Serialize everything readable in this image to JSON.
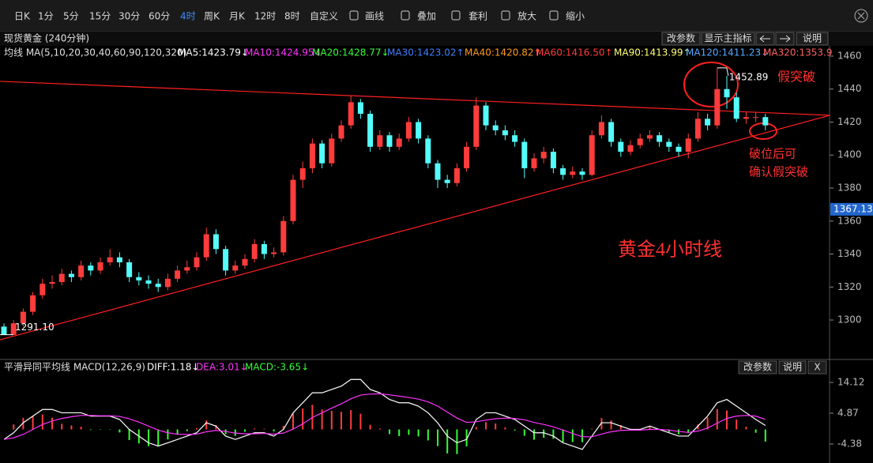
{
  "toolbar": {
    "items": [
      "日K",
      "1分",
      "5分",
      "15分",
      "30分",
      "60分",
      "4时",
      "周K",
      "月K",
      "12时",
      "8时",
      "自定义",
      "画线",
      "叠加",
      "套利",
      "放大",
      "缩小"
    ],
    "selected_index": 6
  },
  "chart_data": [
    {
      "type": "candlestick",
      "title": "现货黄金 (240分钟)",
      "buttons": [
        "改参数",
        "显示主指标",
        "说明"
      ],
      "indicator_title": "均线 MA(5,10,20,30,40,60,90,120,320)",
      "indicators": [
        {
          "label": "MA5:1423.79↓",
          "color": "#ffffff"
        },
        {
          "label": "MA10:1424.95↓",
          "color": "#ff33ff"
        },
        {
          "label": "MA20:1428.77↓",
          "color": "#33ff33"
        },
        {
          "label": "MA30:1423.02↑",
          "color": "#3f7fff"
        },
        {
          "label": "MA40:1420.82↑",
          "color": "#ff9a1e"
        },
        {
          "label": "MA60:1416.50↑",
          "color": "#ff3c3c"
        },
        {
          "label": "MA90:1413.99↑",
          "color": "#ffff77"
        },
        {
          "label": "MA120:1411.23↓",
          "color": "#55aaff"
        },
        {
          "label": "MA320:1353.9",
          "color": "#ff6060"
        }
      ],
      "open": [
        1296,
        1291,
        1298,
        1305,
        1315,
        1322,
        1323,
        1328,
        1326,
        1333,
        1330,
        1335,
        1338,
        1335,
        1326,
        1324,
        1322,
        1320,
        1325,
        1330,
        1332,
        1338,
        1352,
        1343,
        1330,
        1333,
        1337,
        1346,
        1340,
        1341,
        1360,
        1385,
        1392,
        1407,
        1395,
        1410,
        1418,
        1432,
        1425,
        1405,
        1412,
        1405,
        1410,
        1420,
        1410,
        1395,
        1385,
        1383,
        1392,
        1405,
        1430,
        1418,
        1415,
        1412,
        1408,
        1392,
        1398,
        1402,
        1392,
        1388,
        1390,
        1388,
        1412,
        1420,
        1408,
        1402,
        1406,
        1410,
        1412,
        1408,
        1405,
        1402,
        1410,
        1422,
        1418,
        1440,
        1435,
        1422,
        1423,
        1423
      ],
      "high": [
        1298,
        1300,
        1307,
        1317,
        1325,
        1327,
        1331,
        1330,
        1336,
        1335,
        1338,
        1343,
        1341,
        1337,
        1329,
        1327,
        1325,
        1328,
        1333,
        1336,
        1341,
        1356,
        1355,
        1345,
        1336,
        1340,
        1349,
        1348,
        1344,
        1363,
        1388,
        1396,
        1410,
        1409,
        1413,
        1421,
        1436,
        1434,
        1427,
        1415,
        1414,
        1413,
        1423,
        1422,
        1412,
        1397,
        1388,
        1395,
        1408,
        1435,
        1432,
        1421,
        1418,
        1415,
        1410,
        1401,
        1405,
        1404,
        1394,
        1393,
        1392,
        1415,
        1424,
        1422,
        1410,
        1409,
        1413,
        1415,
        1414,
        1410,
        1407,
        1413,
        1426,
        1425,
        1452.89,
        1448,
        1438,
        1426,
        1426,
        1425
      ],
      "low": [
        1291.1,
        1292,
        1296,
        1303,
        1313,
        1319,
        1321,
        1323,
        1324,
        1327,
        1328,
        1333,
        1332,
        1323,
        1321,
        1319,
        1317,
        1318,
        1323,
        1328,
        1330,
        1336,
        1340,
        1327,
        1328,
        1331,
        1335,
        1337,
        1338,
        1339,
        1358,
        1380,
        1389,
        1392,
        1393,
        1408,
        1416,
        1422,
        1402,
        1403,
        1402,
        1403,
        1408,
        1407,
        1392,
        1380,
        1380,
        1381,
        1390,
        1403,
        1415,
        1412,
        1409,
        1405,
        1386,
        1390,
        1395,
        1389,
        1385,
        1386,
        1385,
        1387,
        1410,
        1405,
        1399,
        1400,
        1404,
        1408,
        1405,
        1402,
        1399,
        1398,
        1408,
        1415,
        1416,
        1428,
        1420,
        1419,
        1420,
        1415
      ],
      "close": [
        1291,
        1298,
        1305,
        1315,
        1322,
        1323,
        1328,
        1326,
        1333,
        1330,
        1335,
        1338,
        1335,
        1326,
        1324,
        1322,
        1320,
        1325,
        1330,
        1332,
        1338,
        1352,
        1343,
        1330,
        1333,
        1337,
        1346,
        1340,
        1341,
        1360,
        1385,
        1392,
        1407,
        1395,
        1410,
        1418,
        1432,
        1425,
        1405,
        1412,
        1405,
        1410,
        1420,
        1410,
        1395,
        1385,
        1383,
        1392,
        1405,
        1430,
        1418,
        1415,
        1412,
        1408,
        1392,
        1398,
        1402,
        1392,
        1388,
        1390,
        1388,
        1412,
        1420,
        1408,
        1402,
        1406,
        1410,
        1412,
        1408,
        1405,
        1402,
        1410,
        1422,
        1418,
        1440,
        1435,
        1422,
        1423,
        1423,
        1418
      ],
      "up_color": "#ff3c3c",
      "down_color": "#54fcfc",
      "ylim": [
        1277.5,
        1464.3
      ],
      "yticks": [
        1300,
        1320,
        1340,
        1360,
        1380,
        1400,
        1420,
        1440,
        1460
      ],
      "price_tag": 1367.13,
      "high_label": "1452.89",
      "low_label": "1291.10",
      "trendlines": [
        {
          "x": [
            -0.4,
            85.7
          ],
          "y": [
            1444.7,
            1424.1
          ],
          "color": "#ff2020"
        },
        {
          "x": [
            -0.4,
            85.7
          ],
          "y": [
            1288,
            1424.1
          ],
          "color": "#ff2020"
        }
      ],
      "annotations": [
        "假突破",
        "破位后可",
        "确认假突破",
        "黄金4小时线"
      ]
    },
    {
      "type": "macd",
      "title": "平滑异同平均线 MACD(12,26,9)",
      "indicators": [
        {
          "label": "DIFF:1.18↓",
          "color": "#ffffff"
        },
        {
          "label": "DEA:3.01↓",
          "color": "#ff33ff"
        },
        {
          "label": "MACD:-3.65↓",
          "color": "#33ff33"
        }
      ],
      "buttons": [
        "改参数",
        "说明",
        "X"
      ],
      "series": [
        {
          "color": "#ffffff",
          "values": [
            -3,
            -1,
            2,
            4,
            6,
            6,
            5,
            5,
            5,
            4,
            4,
            4,
            3,
            0,
            -2,
            -4,
            -5,
            -4,
            -3,
            -2,
            -1,
            2,
            1,
            -2,
            -3,
            -2,
            -1,
            -1,
            -2,
            0,
            5,
            8,
            11,
            11,
            12,
            13,
            15,
            15,
            12,
            11,
            9,
            8,
            8,
            7,
            5,
            2,
            -2,
            -4,
            -3,
            3,
            5,
            5,
            4,
            3,
            1,
            -1,
            -1,
            -2,
            -4,
            -5,
            -6,
            -2,
            2,
            2,
            1,
            0,
            0,
            1,
            0,
            -1,
            -2,
            -2,
            1,
            4,
            8,
            9,
            7,
            5,
            3,
            1.18
          ]
        },
        {
          "color": "#ff33ff",
          "values": [
            -3,
            -2.5,
            -1.5,
            0,
            1.5,
            2.5,
            3.3,
            3.8,
            4.2,
            4.2,
            4.1,
            4.1,
            3.9,
            3.2,
            2.2,
            1,
            -0.2,
            -1,
            -1.4,
            -1.5,
            -1.4,
            -0.7,
            -0.3,
            -0.6,
            -1.1,
            -1.3,
            -1.3,
            -1.2,
            -1.4,
            -1.1,
            0.1,
            1.7,
            3.6,
            5,
            6.4,
            7.7,
            9.2,
            10.3,
            10.6,
            10.7,
            10.4,
            10,
            9.6,
            9.1,
            8.3,
            7,
            5.2,
            3.4,
            2.1,
            2.3,
            2.8,
            3.2,
            3.4,
            3.3,
            2.9,
            2.1,
            1.5,
            0.8,
            -0.2,
            -1.2,
            -2.2,
            -2.2,
            -1.4,
            -0.7,
            -0.3,
            -0.2,
            -0.2,
            0,
            0,
            -0.2,
            -0.6,
            -0.9,
            -0.5,
            0.4,
            1.9,
            3.3,
            4,
            4.2,
            4,
            3.01
          ]
        }
      ],
      "histogram": [
        0,
        1.5,
        3.5,
        4,
        4.5,
        3.5,
        1.7,
        1.2,
        0.8,
        -0.2,
        -0.1,
        -0.1,
        -0.9,
        -3.2,
        -4.2,
        -5,
        -4.8,
        -3,
        -1.6,
        -0.5,
        0.4,
        2.7,
        1.3,
        -1.4,
        -1.9,
        -0.7,
        0.3,
        0.2,
        -0.6,
        1.1,
        4.9,
        6.3,
        7.4,
        6,
        5.6,
        5.3,
        5.8,
        4.7,
        1.4,
        0.3,
        -1.4,
        -2,
        -1.6,
        -2.1,
        -3.3,
        -5,
        -7.2,
        -7.4,
        -5.1,
        0.7,
        2.2,
        1.8,
        0.6,
        -0.3,
        -1.9,
        -3.1,
        -2.5,
        -2.8,
        -3.8,
        -3.8,
        -3.8,
        0.2,
        3.4,
        2.7,
        1.3,
        0.2,
        0.2,
        1,
        0,
        -0.8,
        -1.4,
        -1.1,
        1.5,
        3.6,
        6.1,
        5.7,
        3,
        0.8,
        -1,
        -3.65
      ],
      "up_color": "#ff3c3c",
      "down_color": "#33ff33",
      "ylim": [
        -9.6,
        16.25
      ],
      "yticks": [
        -4.38,
        4.87,
        14.12
      ]
    }
  ]
}
